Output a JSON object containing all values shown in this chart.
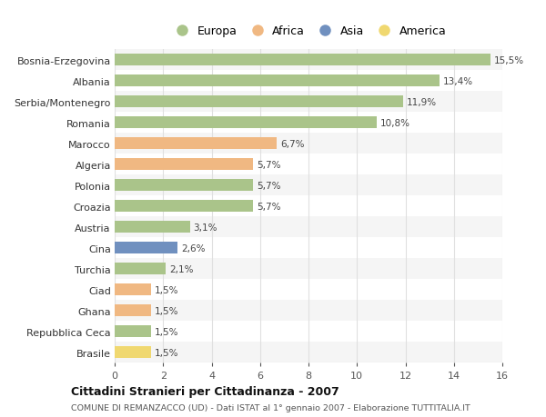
{
  "countries": [
    "Bosnia-Erzegovina",
    "Albania",
    "Serbia/Montenegro",
    "Romania",
    "Marocco",
    "Algeria",
    "Polonia",
    "Croazia",
    "Austria",
    "Cina",
    "Turchia",
    "Ciad",
    "Ghana",
    "Repubblica Ceca",
    "Brasile"
  ],
  "values": [
    15.5,
    13.4,
    11.9,
    10.8,
    6.7,
    5.7,
    5.7,
    5.7,
    3.1,
    2.6,
    2.1,
    1.5,
    1.5,
    1.5,
    1.5
  ],
  "labels": [
    "15,5%",
    "13,4%",
    "11,9%",
    "10,8%",
    "6,7%",
    "5,7%",
    "5,7%",
    "5,7%",
    "3,1%",
    "2,6%",
    "2,1%",
    "1,5%",
    "1,5%",
    "1,5%",
    "1,5%"
  ],
  "continents": [
    "Europa",
    "Europa",
    "Europa",
    "Europa",
    "Africa",
    "Africa",
    "Europa",
    "Europa",
    "Europa",
    "Asia",
    "Europa",
    "Africa",
    "Africa",
    "Europa",
    "America"
  ],
  "colors": {
    "Europa": "#aac48a",
    "Africa": "#f0b882",
    "Asia": "#7090bf",
    "America": "#f0d870"
  },
  "title": "Cittadini Stranieri per Cittadinanza - 2007",
  "subtitle": "COMUNE DI REMANZACCO (UD) - Dati ISTAT al 1° gennaio 2007 - Elaborazione TUTTITALIA.IT",
  "xlim": [
    0,
    16
  ],
  "xticks": [
    0,
    2,
    4,
    6,
    8,
    10,
    12,
    14,
    16
  ],
  "plot_bg": "#ffffff",
  "fig_bg": "#ffffff",
  "grid_color": "#e0e0e0",
  "row_alt_color": "#f0f0f0",
  "bar_height": 0.55
}
